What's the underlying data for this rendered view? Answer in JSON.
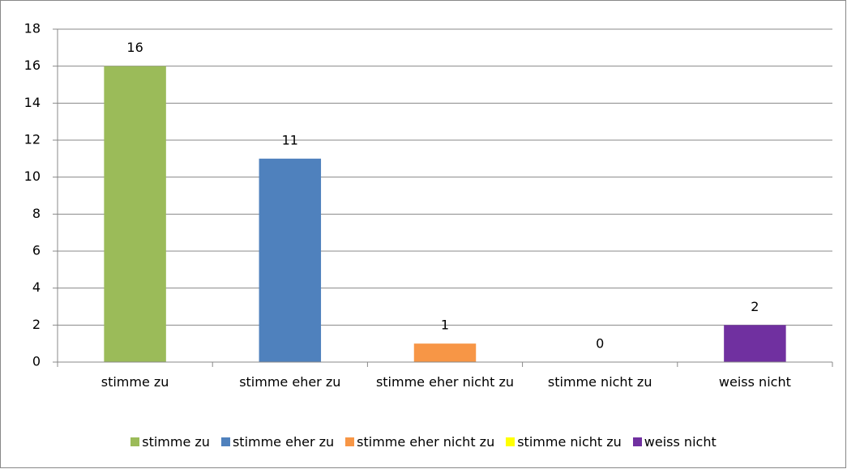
{
  "chart_data": {
    "type": "bar",
    "categories": [
      "stimme zu",
      "stimme eher zu",
      "stimme eher nicht zu",
      "stimme nicht zu",
      "weiss nicht"
    ],
    "values": [
      16,
      11,
      1,
      0,
      2
    ],
    "colors": [
      "#9bbb59",
      "#4f81bd",
      "#f79646",
      "#ffff00",
      "#7030a0"
    ],
    "ylim": [
      0,
      18
    ],
    "yticks": [
      0,
      2,
      4,
      6,
      8,
      10,
      12,
      14,
      16,
      18
    ],
    "grid": true,
    "value_labels_shown": true,
    "legend": "bottom"
  }
}
